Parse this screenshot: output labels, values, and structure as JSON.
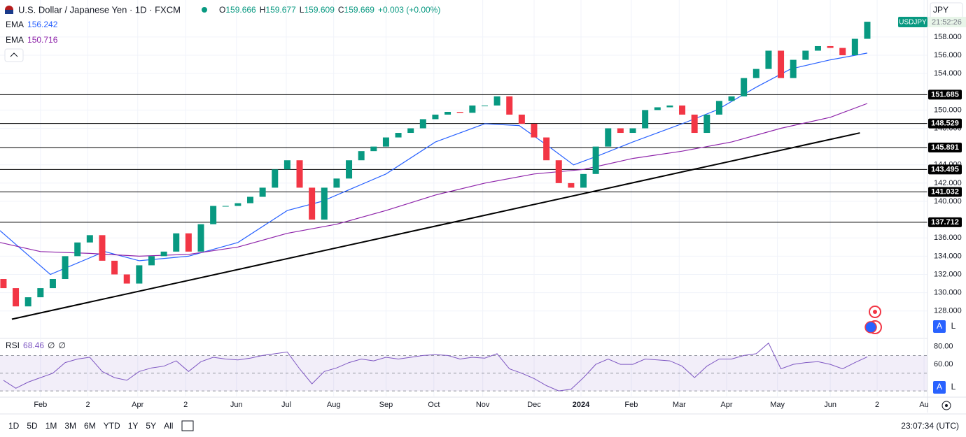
{
  "header": {
    "symbol": "U.S. Dollar / Japanese Yen · 1D · FXCM",
    "ohlc": [
      {
        "k": "O",
        "v": "159.666"
      },
      {
        "k": "H",
        "v": "159.677"
      },
      {
        "k": "L",
        "v": "159.609"
      },
      {
        "k": "C",
        "v": "159.669"
      }
    ],
    "change": "+0.003 (+0.00%)",
    "currency": "JPY",
    "ticker_tag": "USDJPY",
    "countdown": "21:52:26"
  },
  "toolbar": {
    "ranges": [
      "1D",
      "5D",
      "1M",
      "3M",
      "6M",
      "YTD",
      "1Y",
      "5Y",
      "All"
    ],
    "clock": "23:07:34 (UTC)",
    "auto": "A",
    "log": "L"
  },
  "chart_data": {
    "type": "candlestick",
    "up_color": "#089981",
    "down_color": "#f23645",
    "x": [
      0.25,
      0.5,
      0.75,
      1,
      1.25,
      1.5,
      1.75,
      2,
      2.25,
      2.5,
      2.75,
      3,
      3.25,
      3.5,
      3.75,
      4,
      4.25,
      4.5,
      4.75,
      5,
      5.25,
      5.5,
      5.75,
      6,
      6.25,
      6.5,
      6.75,
      7,
      7.25,
      7.5,
      7.75,
      8,
      8.25,
      8.5,
      8.75,
      9,
      9.25,
      9.5,
      9.75,
      10,
      10.25,
      10.5,
      10.75,
      11,
      11.25,
      11.5,
      11.75,
      12,
      12.25,
      12.5,
      12.75,
      13,
      13.25,
      13.5,
      13.75,
      14,
      14.25,
      14.5,
      14.75,
      15,
      15.25,
      15.5,
      15.75,
      16,
      16.25,
      16.5,
      16.75,
      17,
      17.25,
      17.5,
      17.75
    ],
    "open": [
      131.5,
      130.5,
      128.5,
      129.5,
      130.5,
      131.5,
      134,
      135.5,
      136.3,
      133.5,
      132,
      131,
      133,
      134,
      134.5,
      136.5,
      134.5,
      137.5,
      139.5,
      139.5,
      139.8,
      140.5,
      141.5,
      143.5,
      144.5,
      141.5,
      138,
      141.5,
      142.5,
      144.5,
      145.5,
      146,
      147,
      147.5,
      148,
      149,
      149.5,
      149.8,
      149.7,
      150.5,
      150.5,
      151.5,
      149.5,
      148.5,
      147,
      144.5,
      142,
      141.5,
      143,
      146,
      148,
      147.5,
      148,
      150,
      150.3,
      150.5,
      149.5,
      147.5,
      149.5,
      151,
      151.5,
      153.5,
      154.5,
      156.5,
      153.5,
      155.5,
      156.5,
      157,
      156.8,
      156,
      157.8
    ],
    "close": [
      130.5,
      128.5,
      129.5,
      130.5,
      131.5,
      134,
      135.5,
      136.3,
      133.5,
      132,
      131,
      133,
      134,
      134.5,
      136.5,
      134.5,
      137.5,
      139.5,
      139.5,
      139.8,
      140.5,
      141.5,
      143.5,
      144.5,
      141.5,
      138,
      141.5,
      142.5,
      144.5,
      145.5,
      146,
      147,
      147.5,
      148,
      149,
      149.5,
      149.8,
      149.7,
      150.5,
      150.5,
      151.5,
      149.5,
      148.5,
      147,
      144.5,
      142,
      141.5,
      143,
      146,
      148,
      147.5,
      148,
      150,
      150.3,
      150.5,
      149.5,
      147.5,
      149.5,
      151,
      151.5,
      153.5,
      154.5,
      156.5,
      153.5,
      155.5,
      156.5,
      157,
      156.8,
      156,
      157.8,
      159.67
    ],
    "series": [
      {
        "name": "EMA",
        "color": "#2962ff",
        "x": [
          0.18,
          1.2,
          2.3,
          3,
          4,
          5,
          6,
          6.7,
          8,
          9,
          10,
          10.7,
          11.3,
          11.8,
          12.3,
          13,
          14,
          14.7,
          15.5,
          16.2,
          17,
          17.75
        ],
        "values": [
          136.8,
          132,
          134.5,
          133.5,
          134,
          135.5,
          139,
          140,
          143,
          146.5,
          148.5,
          148.3,
          146,
          144,
          145,
          146.5,
          148.5,
          150,
          152.5,
          154.5,
          155.5,
          156.242
        ]
      },
      {
        "name": "EMA",
        "color": "#8e24aa",
        "x": [
          0.18,
          1,
          2,
          3,
          4,
          5,
          6,
          7,
          8,
          9,
          10,
          11,
          12,
          13,
          14,
          15,
          16,
          17,
          17.75
        ],
        "values": [
          135.5,
          134.5,
          134.3,
          134,
          134.2,
          135,
          136.5,
          137.5,
          139,
          140.7,
          142,
          143,
          143.5,
          144.7,
          145.5,
          146.5,
          148,
          149.2,
          150.716
        ]
      }
    ],
    "levels": [
      151.685,
      148.529,
      145.891,
      143.495,
      141.032,
      137.712
    ],
    "trendline": {
      "x": [
        0.42,
        17.6
      ],
      "y": [
        127.1,
        147.5
      ]
    },
    "xlim": [
      0.18,
      18.97
    ],
    "ylim": [
      125.07,
      162.05
    ],
    "xticks": [
      {
        "value": 1,
        "label": "Feb"
      },
      {
        "value": 1.96,
        "label": "2"
      },
      {
        "value": 2.97,
        "label": "Apr"
      },
      {
        "value": 3.94,
        "label": "2"
      },
      {
        "value": 4.97,
        "label": "Jun"
      },
      {
        "value": 5.98,
        "label": "Jul"
      },
      {
        "value": 6.94,
        "label": "Aug"
      },
      {
        "value": 8,
        "label": "Sep"
      },
      {
        "value": 8.97,
        "label": "Oct"
      },
      {
        "value": 9.96,
        "label": "Nov"
      },
      {
        "value": 11,
        "label": "Dec"
      },
      {
        "value": 11.95,
        "label": "2024"
      },
      {
        "value": 12.97,
        "label": "Feb"
      },
      {
        "value": 13.94,
        "label": "Mar"
      },
      {
        "value": 14.9,
        "label": "Apr"
      },
      {
        "value": 15.93,
        "label": "May"
      },
      {
        "value": 17,
        "label": "Jun"
      },
      {
        "value": 17.95,
        "label": "2"
      },
      {
        "value": 18.9,
        "label": "Au"
      }
    ],
    "yticks": [
      {
        "value": 128,
        "label": "128.000"
      },
      {
        "value": 130,
        "label": "130.000"
      },
      {
        "value": 132,
        "label": "132.000"
      },
      {
        "value": 134,
        "label": "134.000"
      },
      {
        "value": 136,
        "label": "136.000"
      },
      {
        "value": 140,
        "label": "140.000"
      },
      {
        "value": 142,
        "label": "142.000"
      },
      {
        "value": 144,
        "label": "144.000"
      },
      {
        "value": 148,
        "label": "148.000"
      },
      {
        "value": 150,
        "label": "150.000"
      },
      {
        "value": 154,
        "label": "154.000"
      },
      {
        "value": 156,
        "label": "156.000"
      },
      {
        "value": 158,
        "label": "158.000"
      }
    ],
    "grid": true,
    "rsi": {
      "name": "RSI",
      "params": [
        "∅",
        "∅"
      ],
      "color": "#7e57c2",
      "values": [
        42,
        33,
        40,
        45,
        50,
        62,
        66,
        68,
        52,
        45,
        42,
        52,
        56,
        58,
        64,
        52,
        63,
        68,
        66,
        65,
        67,
        70,
        72,
        74,
        55,
        38,
        52,
        56,
        62,
        66,
        64,
        68,
        66,
        68,
        70,
        71,
        70,
        66,
        68,
        67,
        72,
        55,
        50,
        44,
        36,
        30,
        32,
        45,
        60,
        66,
        60,
        60,
        66,
        65,
        64,
        58,
        45,
        58,
        66,
        66,
        70,
        72,
        84,
        55,
        60,
        62,
        63,
        60,
        55,
        62,
        68.46
      ],
      "ylim": [
        23.8,
        88.5
      ],
      "yticks": [
        {
          "value": 60,
          "label": "60.00"
        },
        {
          "value": 80,
          "label": "80.00"
        }
      ],
      "band": [
        30,
        70
      ],
      "mid": 50
    }
  }
}
